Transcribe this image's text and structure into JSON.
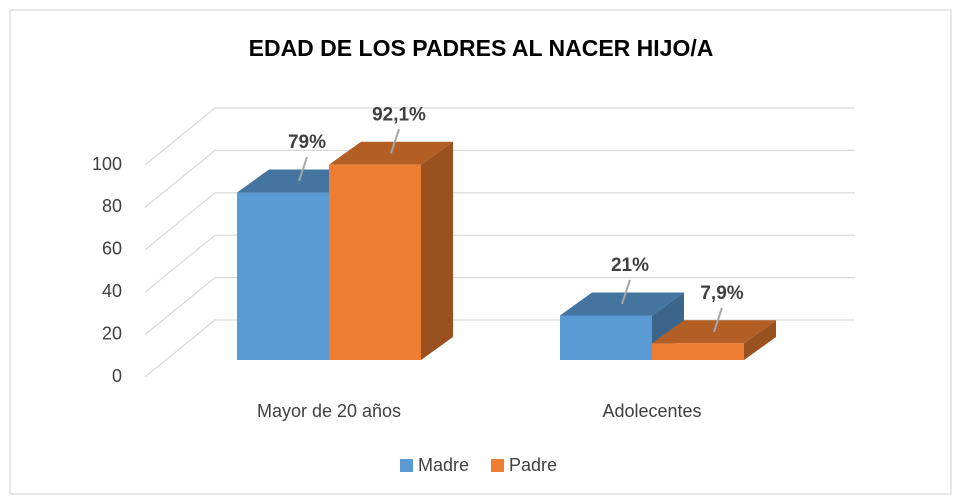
{
  "chart_data": {
    "type": "bar3d",
    "title": "EDAD DE LOS PADRES AL NACER HIJO/A",
    "categories": [
      "Mayor de 20 años",
      "Adolecentes"
    ],
    "series": [
      {
        "name": "Madre",
        "color": "#5b9bd5",
        "values": [
          79,
          21
        ],
        "value_labels": [
          "79%",
          "21%"
        ]
      },
      {
        "name": "Padre",
        "color": "#ed7d31",
        "values": [
          92.1,
          7.9
        ],
        "value_labels": [
          "92,1%",
          "7,9%"
        ]
      }
    ],
    "ylim": [
      0,
      100
    ],
    "yticks": [
      0,
      20,
      40,
      60,
      80,
      100
    ],
    "grid": true,
    "legend": "bottom"
  }
}
